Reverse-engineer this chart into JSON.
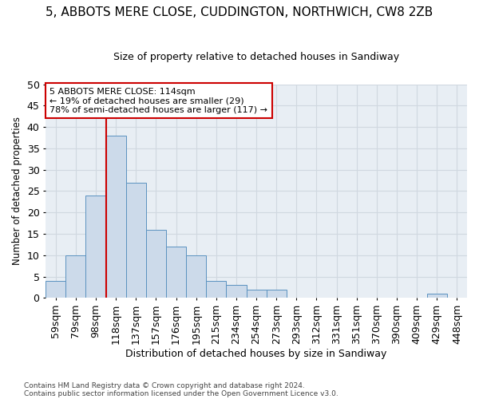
{
  "title": "5, ABBOTS MERE CLOSE, CUDDINGTON, NORTHWICH, CW8 2ZB",
  "subtitle": "Size of property relative to detached houses in Sandiway",
  "xlabel": "Distribution of detached houses by size in Sandiway",
  "ylabel": "Number of detached properties",
  "categories": [
    "59sqm",
    "79sqm",
    "98sqm",
    "118sqm",
    "137sqm",
    "157sqm",
    "176sqm",
    "195sqm",
    "215sqm",
    "234sqm",
    "254sqm",
    "273sqm",
    "293sqm",
    "312sqm",
    "331sqm",
    "351sqm",
    "370sqm",
    "390sqm",
    "409sqm",
    "429sqm",
    "448sqm"
  ],
  "values": [
    4,
    10,
    24,
    38,
    27,
    16,
    12,
    10,
    4,
    3,
    2,
    2,
    0,
    0,
    0,
    0,
    0,
    0,
    0,
    1,
    0
  ],
  "bar_color": "#ccdaea",
  "bar_edge_color": "#5b92c0",
  "grid_color": "#d0d8e0",
  "bg_color": "#e8eef4",
  "vline_x_idx": 3,
  "vline_color": "#cc0000",
  "annotation_text": "5 ABBOTS MERE CLOSE: 114sqm\n← 19% of detached houses are smaller (29)\n78% of semi-detached houses are larger (117) →",
  "annotation_box_color": "#cc0000",
  "ylim": [
    0,
    50
  ],
  "yticks": [
    0,
    5,
    10,
    15,
    20,
    25,
    30,
    35,
    40,
    45,
    50
  ],
  "footer1": "Contains HM Land Registry data © Crown copyright and database right 2024.",
  "footer2": "Contains public sector information licensed under the Open Government Licence v3.0.",
  "title_fontsize": 11,
  "subtitle_fontsize": 9
}
